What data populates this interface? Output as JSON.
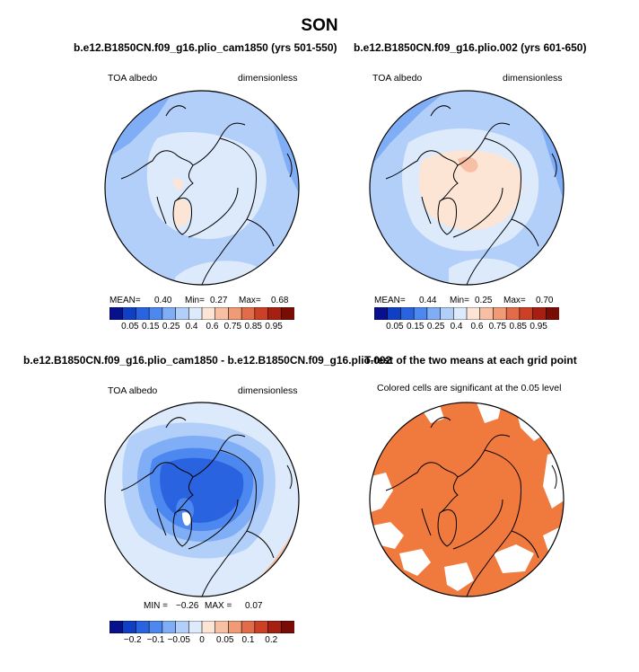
{
  "figure": {
    "title": "SON"
  },
  "panels": [
    {
      "title": "b.e12.B1850CN.f09_g16.plio_cam1850 (yrs 501-550)",
      "variable": "TOA albedo",
      "units": "dimensionless",
      "stats": {
        "mean_label": "MEAN=",
        "mean": "0.40",
        "min_label": "Min=",
        "min": "0.27",
        "max_label": "Max=",
        "max": "0.68"
      },
      "colorbar_labels": [
        "0.05",
        "0.15",
        "0.25",
        "0.4",
        "0.6",
        "0.75",
        "0.85",
        "0.95"
      ]
    },
    {
      "title": "b.e12.B1850CN.f09_g16.plio.002 (yrs 601-650)",
      "variable": "TOA albedo",
      "units": "dimensionless",
      "stats": {
        "mean_label": "MEAN=",
        "mean": "0.44",
        "min_label": "Min=",
        "min": "0.25",
        "max_label": "Max=",
        "max": "0.70"
      },
      "colorbar_labels": [
        "0.05",
        "0.15",
        "0.25",
        "0.4",
        "0.6",
        "0.75",
        "0.85",
        "0.95"
      ]
    },
    {
      "title": "b.e12.B1850CN.f09_g16.plio_cam1850 - b.e12.B1850CN.f09_g16.plio.002",
      "variable": "TOA albedo",
      "units": "dimensionless",
      "stats": {
        "min_label": "MIN =",
        "min": "−0.26",
        "max_label": "MAX =",
        "max": "0.07"
      },
      "colorbar_labels": [
        "−0.2",
        "−0.1",
        "−0.05",
        "0",
        "0.05",
        "0.1",
        "0.2"
      ]
    },
    {
      "title": "T-test of the two means at each grid point",
      "note": "Colored cells are significant at the 0.05 level"
    }
  ],
  "colors": {
    "colorbar_abs": [
      "#08108c",
      "#0f3fc4",
      "#2a63e0",
      "#4c88f0",
      "#80aef6",
      "#b2cff9",
      "#ddeafb",
      "#fde5d6",
      "#f7bfa4",
      "#f09a76",
      "#e26c4a",
      "#cc4026",
      "#a71f10",
      "#7a0c06"
    ],
    "colorbar_diff": [
      "#08108c",
      "#0f3fc4",
      "#2a63e0",
      "#4c88f0",
      "#80aef6",
      "#b2cff9",
      "#ddeafb",
      "#fde5d6",
      "#f7bfa4",
      "#f09a76",
      "#e26c4a",
      "#cc4026",
      "#a71f10",
      "#7a0c06"
    ],
    "ttest_fill": "#f07a3e",
    "coast": "#000000"
  }
}
